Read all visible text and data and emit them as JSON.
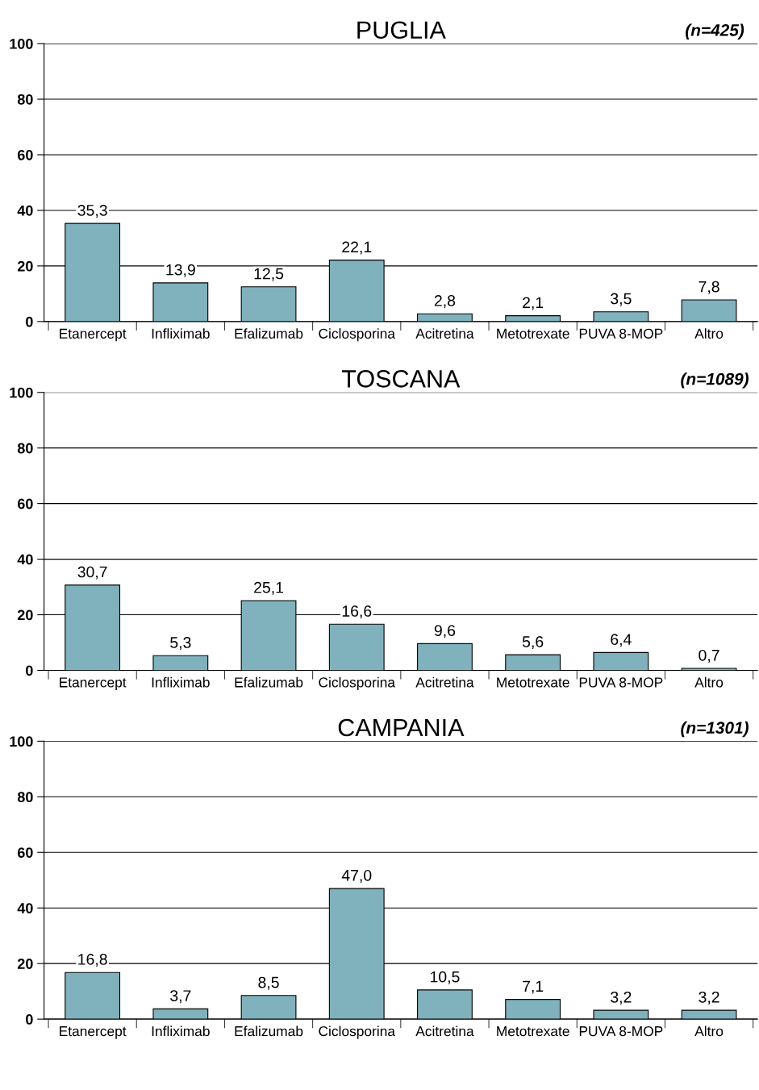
{
  "chart_data": [
    {
      "type": "bar",
      "title": "PUGLIA",
      "annotations": [
        "(n=425)"
      ],
      "categories": [
        "Etanercept",
        "Infliximab",
        "Efalizumab",
        "Ciclosporina",
        "Acitretina",
        "Metotrexate",
        "PUVA 8-MOP",
        "Altro"
      ],
      "values": [
        35.3,
        13.9,
        12.5,
        22.1,
        2.8,
        2.1,
        3.5,
        7.8
      ],
      "value_labels": [
        "35,3",
        "13,9",
        "12,5",
        "22,1",
        "2,8",
        "2,1",
        "3,5",
        "7,8"
      ],
      "color": "#7fb2bd",
      "ylim": [
        0,
        100
      ],
      "yticks": [
        0,
        20,
        40,
        60,
        80,
        100
      ],
      "grid": "y"
    },
    {
      "type": "bar",
      "title": "TOSCANA",
      "annotations": [
        "(n=1089)"
      ],
      "categories": [
        "Etanercept",
        "Infliximab",
        "Efalizumab",
        "Ciclosporina",
        "Acitretina",
        "Metotrexate",
        "PUVA 8-MOP",
        "Altro"
      ],
      "values": [
        30.7,
        5.3,
        25.1,
        16.6,
        9.6,
        5.6,
        6.4,
        0.7
      ],
      "value_labels": [
        "30,7",
        "5,3",
        "25,1",
        "16,6",
        "9,6",
        "5,6",
        "6,4",
        "0,7"
      ],
      "color": "#7fb2bd",
      "ylim": [
        0,
        100
      ],
      "yticks": [
        0,
        20,
        40,
        60,
        80,
        100
      ],
      "grid": "y"
    },
    {
      "type": "bar",
      "title": "CAMPANIA",
      "annotations": [
        "(n=1301)"
      ],
      "categories": [
        "Etanercept",
        "Infliximab",
        "Efalizumab",
        "Ciclosporina",
        "Acitretina",
        "Metotrexate",
        "PUVA 8-MOP",
        "Altro"
      ],
      "values": [
        16.8,
        3.7,
        8.5,
        47.0,
        10.5,
        7.1,
        3.2,
        3.2
      ],
      "value_labels": [
        "16,8",
        "3,7",
        "8,5",
        "47,0",
        "10,5",
        "7,1",
        "3,2",
        "3,2"
      ],
      "color": "#7fb2bd",
      "ylim": [
        0,
        100
      ],
      "yticks": [
        0,
        20,
        40,
        60,
        80,
        100
      ],
      "grid": "y"
    }
  ]
}
